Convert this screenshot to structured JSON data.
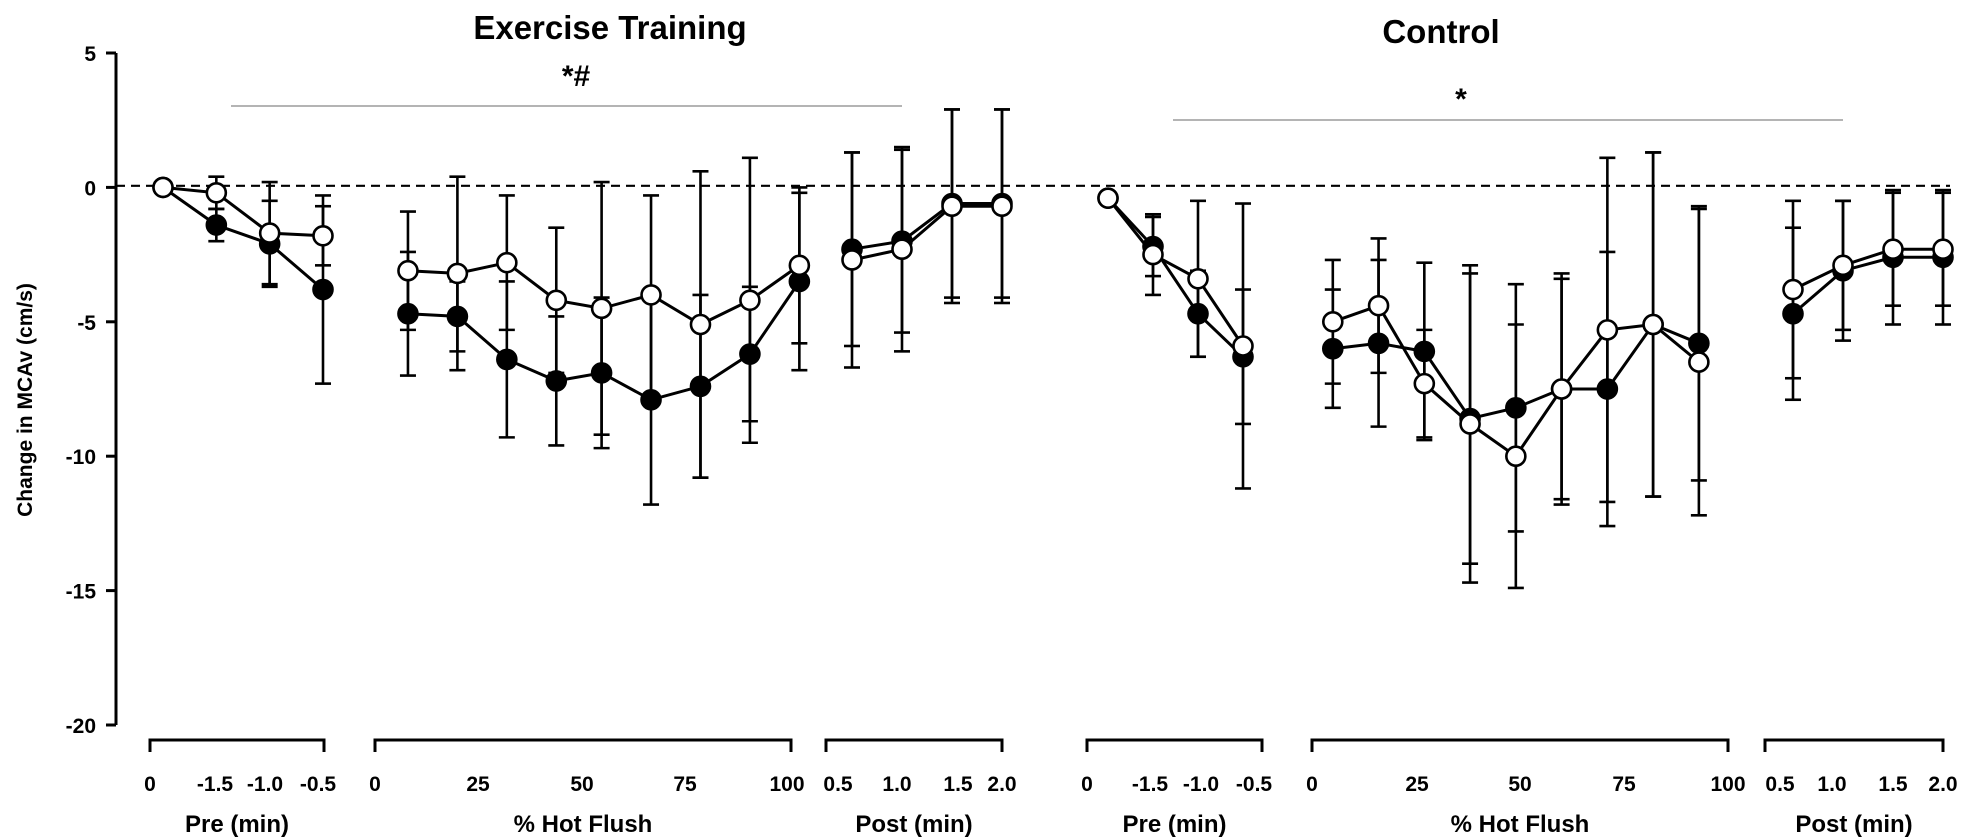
{
  "chart_data": {
    "type": "line",
    "ylabel": "Change in MCAv (cm/s)",
    "ylim": [
      -20,
      5
    ],
    "yticks": [
      5,
      0,
      -5,
      -10,
      -15,
      -20
    ],
    "reference_line": 0,
    "group_labels": [
      "Pre (min)",
      "% Hot Flush",
      "Post (min)"
    ],
    "x_ticks": {
      "pre": [
        "0",
        "-1.5",
        "-1.0",
        "-0.5"
      ],
      "hotflush": [
        "0",
        "25",
        "50",
        "75",
        "100"
      ],
      "post": [
        "0.5",
        "1.0",
        "1.5",
        "2.0"
      ]
    },
    "series_styles": [
      {
        "marker": "filled-circle",
        "color": "#000000"
      },
      {
        "marker": "open-circle",
        "color": "#000000"
      }
    ],
    "panels": [
      {
        "title": "Exercise Training",
        "significance": "*#",
        "series": [
          {
            "style": 0,
            "pre": {
              "x": [
                -2.0,
                -1.5,
                -1.0,
                -0.5
              ],
              "y": [
                0.0,
                -1.4,
                -2.1,
                -3.8
              ],
              "err": [
                0.0,
                0.6,
                1.6,
                3.5
              ]
            },
            "hotflush": {
              "x": [
                8,
                20,
                32,
                44,
                55,
                67,
                79,
                91,
                103
              ],
              "y": [
                -4.7,
                -4.8,
                -6.4,
                -7.2,
                -6.9,
                -7.9,
                -7.4,
                -6.2,
                -3.5
              ],
              "err": [
                2.3,
                1.3,
                2.9,
                2.4,
                2.8,
                3.9,
                3.4,
                2.5,
                3.3
              ]
            },
            "post": {
              "x": [
                0.5,
                1.0,
                1.5,
                2.0
              ],
              "y": [
                -2.3,
                -2.0,
                -0.6,
                -0.6
              ],
              "err": [
                3.6,
                3.4,
                3.5,
                3.5
              ]
            }
          },
          {
            "style": 1,
            "pre": {
              "x": [
                -2.0,
                -1.5,
                -1.0,
                -0.5
              ],
              "y": [
                0.0,
                -0.2,
                -1.7,
                -1.8
              ],
              "err": [
                0.0,
                0.6,
                1.9,
                1.1
              ]
            },
            "hotflush": {
              "x": [
                8,
                20,
                32,
                44,
                55,
                67,
                79,
                91,
                103
              ],
              "y": [
                -3.1,
                -3.2,
                -2.8,
                -4.2,
                -4.5,
                -4.0,
                -5.1,
                -4.2,
                -2.9
              ],
              "err": [
                2.2,
                3.6,
                2.5,
                2.7,
                4.7,
                3.7,
                5.7,
                5.3,
                2.9
              ]
            },
            "post": {
              "x": [
                0.5,
                1.0,
                1.5,
                2.0
              ],
              "y": [
                -2.7,
                -2.3,
                -0.7,
                -0.7
              ],
              "err": [
                4.0,
                3.8,
                3.6,
                3.6
              ]
            }
          }
        ]
      },
      {
        "title": "Control",
        "significance": "*",
        "series": [
          {
            "style": 0,
            "pre": {
              "x": [
                -2.0,
                -1.5,
                -1.0,
                -0.5
              ],
              "y": [
                -0.4,
                -2.2,
                -4.7,
                -6.3
              ],
              "err": [
                0.0,
                1.1,
                1.6,
                2.5
              ]
            },
            "hotflush": {
              "x": [
                5,
                16,
                27,
                38,
                49,
                60,
                71,
                82,
                93
              ],
              "y": [
                -6.0,
                -5.8,
                -6.1,
                -8.6,
                -8.2,
                -7.5,
                -7.5,
                -5.1,
                -5.8
              ],
              "err": [
                2.2,
                3.1,
                3.3,
                5.4,
                4.6,
                4.3,
                5.1,
                6.4,
                5.1
              ]
            },
            "post": {
              "x": [
                0.5,
                1.0,
                1.5,
                2.0
              ],
              "y": [
                -4.7,
                -3.1,
                -2.6,
                -2.6
              ],
              "err": [
                3.2,
                2.6,
                2.5,
                2.5
              ]
            }
          },
          {
            "style": 1,
            "pre": {
              "x": [
                -2.0,
                -1.5,
                -1.0,
                -0.5
              ],
              "y": [
                -0.4,
                -2.5,
                -3.4,
                -5.9
              ],
              "err": [
                0.0,
                1.5,
                2.9,
                5.3
              ]
            },
            "hotflush": {
              "x": [
                5,
                16,
                27,
                38,
                49,
                60,
                71,
                82,
                93
              ],
              "y": [
                -5.0,
                -4.4,
                -7.3,
                -8.8,
                -10.0,
                -7.5,
                -5.3,
                -5.1,
                -6.5
              ],
              "err": [
                2.3,
                2.5,
                2.0,
                5.9,
                4.9,
                4.1,
                6.4,
                6.4,
                5.7
              ]
            },
            "post": {
              "x": [
                0.5,
                1.0,
                1.5,
                2.0
              ],
              "y": [
                -3.8,
                -2.9,
                -2.3,
                -2.3
              ],
              "err": [
                3.3,
                2.4,
                2.1,
                2.1
              ]
            }
          }
        ]
      }
    ]
  }
}
